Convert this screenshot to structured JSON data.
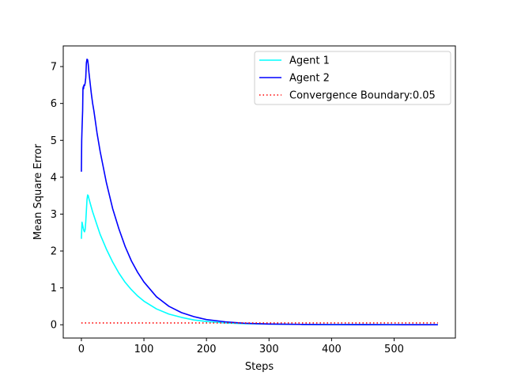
{
  "chart_data": {
    "type": "line",
    "title": "",
    "xlabel": "Steps",
    "ylabel": "Mean Square Error",
    "xlim": [
      -29,
      598
    ],
    "ylim": [
      -0.36,
      7.56
    ],
    "xticks": [
      0,
      100,
      200,
      300,
      400,
      500
    ],
    "yticks": [
      0,
      1,
      2,
      3,
      4,
      5,
      6,
      7
    ],
    "grid": false,
    "legend_position": "top-right",
    "series": [
      {
        "name": "Agent 1",
        "color": "#00ffff",
        "style": "solid",
        "x": [
          0,
          1,
          2,
          3,
          4,
          5,
          6,
          7,
          8,
          9,
          10,
          11,
          12,
          14,
          16,
          18,
          20,
          25,
          30,
          40,
          50,
          60,
          70,
          80,
          90,
          100,
          120,
          140,
          160,
          180,
          200,
          230,
          260,
          300,
          350,
          400,
          450,
          500,
          570
        ],
        "y": [
          2.33,
          2.78,
          2.7,
          2.62,
          2.55,
          2.52,
          2.58,
          2.8,
          3.1,
          3.4,
          3.52,
          3.5,
          3.42,
          3.3,
          3.18,
          3.06,
          2.96,
          2.7,
          2.45,
          2.05,
          1.7,
          1.4,
          1.15,
          0.95,
          0.78,
          0.64,
          0.43,
          0.29,
          0.2,
          0.13,
          0.09,
          0.05,
          0.03,
          0.02,
          0.01,
          0.005,
          0.003,
          0.002,
          0.001
        ]
      },
      {
        "name": "Agent 2",
        "color": "#0000ff",
        "style": "solid",
        "x": [
          0,
          0.5,
          1,
          2,
          2.5,
          3,
          3.5,
          4,
          5,
          6,
          7,
          8,
          9,
          10,
          11,
          12,
          14,
          16,
          18,
          20,
          25,
          30,
          40,
          50,
          60,
          70,
          80,
          90,
          100,
          120,
          140,
          160,
          180,
          200,
          230,
          260,
          300,
          350,
          400,
          450,
          500,
          570
        ],
        "y": [
          4.15,
          5.0,
          5.3,
          5.8,
          6.4,
          6.45,
          6.4,
          6.5,
          6.48,
          6.55,
          6.7,
          7.1,
          7.2,
          7.18,
          7.05,
          6.85,
          6.55,
          6.25,
          6.0,
          5.8,
          5.2,
          4.7,
          3.85,
          3.15,
          2.6,
          2.12,
          1.73,
          1.42,
          1.16,
          0.76,
          0.5,
          0.33,
          0.22,
          0.14,
          0.08,
          0.04,
          0.02,
          0.01,
          0.005,
          0.003,
          0.002,
          0.001
        ]
      },
      {
        "name": "Convergence Boundary:0.05",
        "color": "#ff0000",
        "style": "dotted",
        "x": [
          0,
          570
        ],
        "y": [
          0.05,
          0.05
        ]
      }
    ]
  }
}
